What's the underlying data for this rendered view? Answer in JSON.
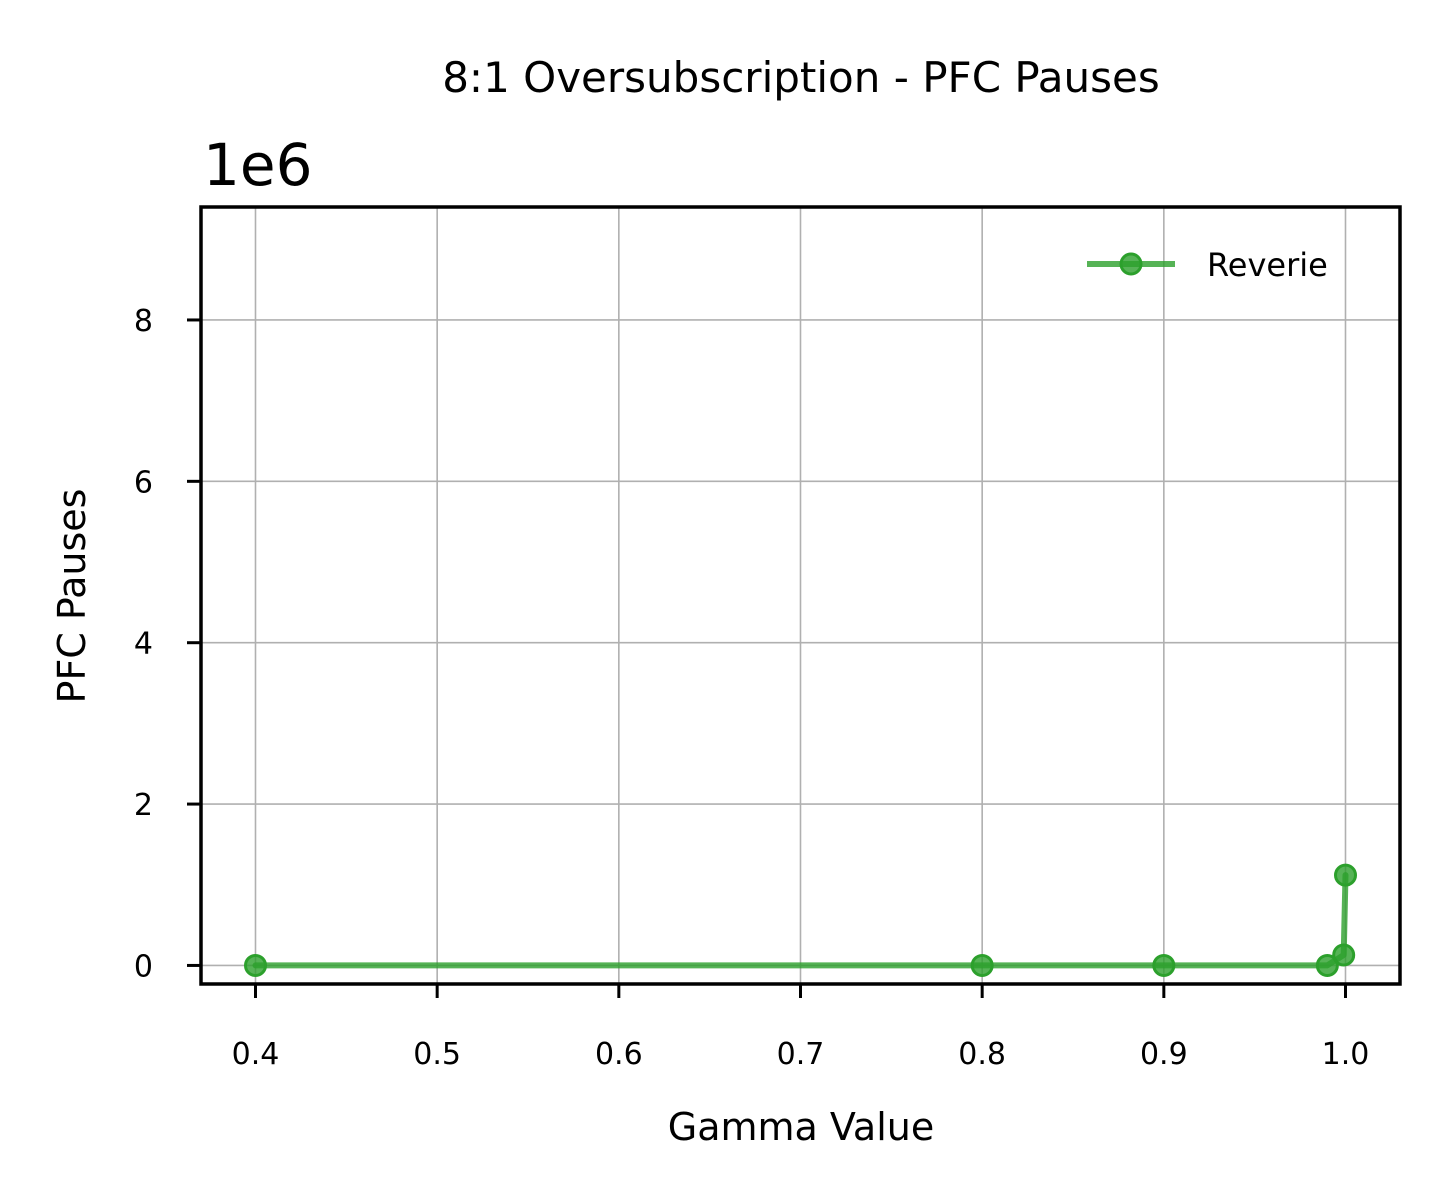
{
  "chart_data": {
    "type": "line",
    "title": "8:1 Oversubscription - PFC Pauses",
    "xlabel": "Gamma Value",
    "ylabel": "PFC Pauses",
    "y_offset_label": "1e6",
    "y_scale_factor": 1000000,
    "xlim": [
      0.37,
      1.03
    ],
    "ylim": [
      -230000,
      9400000
    ],
    "x_ticks": [
      0.4,
      0.5,
      0.6,
      0.7,
      0.8,
      0.9,
      1.0
    ],
    "x_tick_labels": [
      "0.4",
      "0.5",
      "0.6",
      "0.7",
      "0.8",
      "0.9",
      "1.0"
    ],
    "y_ticks": [
      0,
      2000000,
      4000000,
      6000000,
      8000000
    ],
    "y_tick_labels": [
      "0",
      "2",
      "4",
      "6",
      "8"
    ],
    "grid": true,
    "legend_position": "upper right",
    "series": [
      {
        "name": "Reverie",
        "color": "#2ca02c",
        "marker": "circle",
        "x": [
          0.4,
          0.8,
          0.9,
          0.99,
          0.999,
          1.0
        ],
        "y": [
          0,
          0,
          0,
          0,
          130000,
          1120000
        ]
      }
    ]
  }
}
